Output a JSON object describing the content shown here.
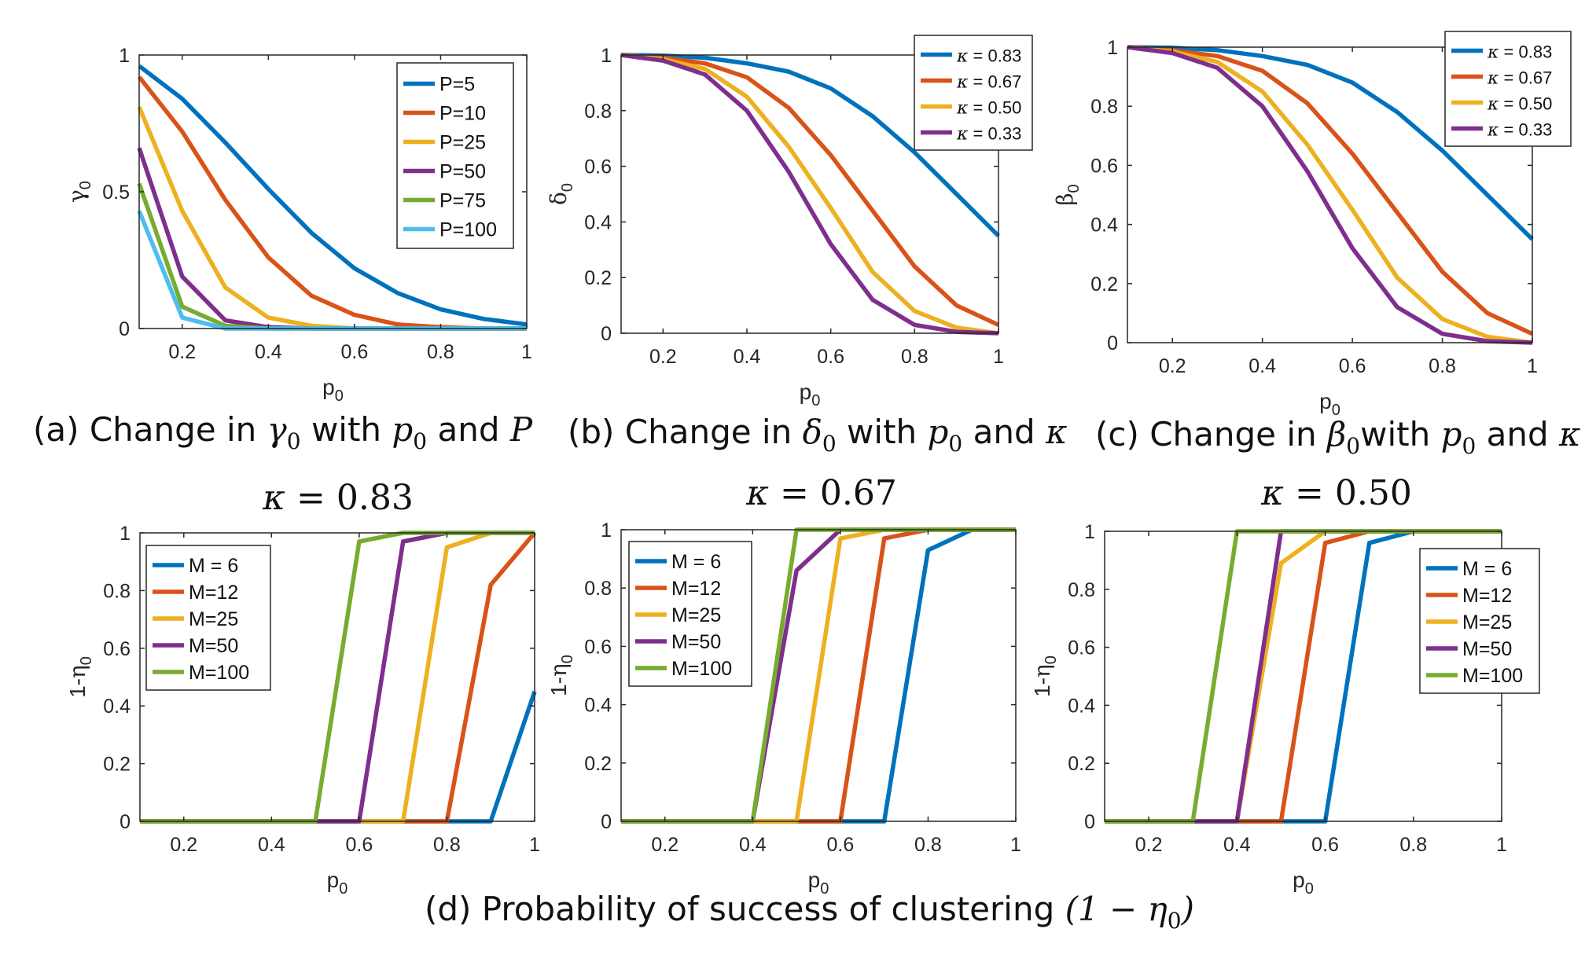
{
  "colors": {
    "blue": "#0072BD",
    "orange": "#D95319",
    "yellow": "#EDB120",
    "purple": "#7E2F8E",
    "green": "#77AC30",
    "cyan": "#4DBEEE"
  },
  "captions": {
    "a": {
      "pre": "(a) Change in ",
      "sym": "γ",
      "sub": "0",
      "mid": " with ",
      "p": "p",
      "psub": "0",
      "and": " and ",
      "last": "P"
    },
    "b": {
      "pre": "(b) Change in ",
      "sym": "δ",
      "sub": "0",
      "mid": " with ",
      "p": "p",
      "psub": "0",
      "and": " and ",
      "last": "κ"
    },
    "c": {
      "pre": "(c) Change in ",
      "sym": "β",
      "sub": "0",
      "mid": "with ",
      "p": "p",
      "psub": "0",
      "and": " and ",
      "last": "κ"
    },
    "d": {
      "pre": "(d) Probability of success of clustering ",
      "expr": "(1 − η",
      "sub": "0",
      "close": ")"
    }
  },
  "chart_data": [
    {
      "id": "a",
      "type": "line",
      "ylabel": "γ0",
      "ylabel_sym": "γ",
      "ylabel_sub": "0",
      "xlabel": "p0",
      "xlabel_sym": "p",
      "xlabel_sub": "0",
      "xlim": [
        0.1,
        1
      ],
      "ylim": [
        0,
        1
      ],
      "xticks": [
        "0.2",
        "0.4",
        "0.6",
        "0.8",
        "1"
      ],
      "yticks": [
        "0",
        "0.5",
        "1"
      ],
      "legend_position": "top-right",
      "x": [
        0.1,
        0.2,
        0.3,
        0.4,
        0.5,
        0.6,
        0.7,
        0.8,
        0.9,
        1.0
      ],
      "series": [
        {
          "name": "P=5",
          "color": "#0072BD",
          "values": [
            0.96,
            0.84,
            0.68,
            0.51,
            0.35,
            0.22,
            0.13,
            0.07,
            0.035,
            0.015
          ]
        },
        {
          "name": "P=10",
          "color": "#D95319",
          "values": [
            0.92,
            0.72,
            0.47,
            0.26,
            0.12,
            0.05,
            0.015,
            0.005,
            0.0,
            0.0
          ]
        },
        {
          "name": "P=25",
          "color": "#EDB120",
          "values": [
            0.81,
            0.43,
            0.15,
            0.04,
            0.01,
            0.0,
            0.0,
            0.0,
            0.0,
            0.0
          ]
        },
        {
          "name": "P=50",
          "color": "#7E2F8E",
          "values": [
            0.66,
            0.19,
            0.03,
            0.005,
            0.0,
            0.0,
            0.0,
            0.0,
            0.0,
            0.0
          ]
        },
        {
          "name": "P=75",
          "color": "#77AC30",
          "values": [
            0.53,
            0.08,
            0.01,
            0.0,
            0.0,
            0.0,
            0.0,
            0.0,
            0.0,
            0.0
          ]
        },
        {
          "name": "P=100",
          "color": "#4DBEEE",
          "values": [
            0.43,
            0.04,
            0.0,
            0.0,
            0.0,
            0.0,
            0.0,
            0.0,
            0.0,
            0.0
          ]
        }
      ]
    },
    {
      "id": "b",
      "type": "line",
      "ylabel": "δ0",
      "ylabel_sym": "δ",
      "ylabel_sub": "0",
      "xlabel": "p0",
      "xlabel_sym": "p",
      "xlabel_sub": "0",
      "xlim": [
        0.1,
        1
      ],
      "ylim": [
        0,
        1
      ],
      "xticks": [
        "0.2",
        "0.4",
        "0.6",
        "0.8",
        "1"
      ],
      "yticks": [
        "0",
        "0.2",
        "0.4",
        "0.6",
        "0.8",
        "1"
      ],
      "legend_position": "top-right",
      "x": [
        0.1,
        0.2,
        0.3,
        0.4,
        0.5,
        0.6,
        0.7,
        0.8,
        0.9,
        1.0
      ],
      "series": [
        {
          "name": "κ = 0.83",
          "sym": "κ",
          "rest": " = 0.83",
          "color": "#0072BD",
          "values": [
            1.0,
            0.998,
            0.99,
            0.97,
            0.94,
            0.88,
            0.78,
            0.65,
            0.5,
            0.35
          ]
        },
        {
          "name": "κ = 0.67",
          "sym": "κ",
          "rest": " = 0.67",
          "color": "#D95319",
          "values": [
            1.0,
            0.99,
            0.97,
            0.92,
            0.81,
            0.64,
            0.44,
            0.24,
            0.1,
            0.03
          ]
        },
        {
          "name": "κ = 0.50",
          "sym": "κ",
          "rest": " = 0.50",
          "color": "#EDB120",
          "values": [
            1.0,
            0.985,
            0.95,
            0.85,
            0.67,
            0.45,
            0.22,
            0.08,
            0.02,
            0.0
          ]
        },
        {
          "name": "κ = 0.33",
          "sym": "κ",
          "rest": " = 0.33",
          "color": "#7E2F8E",
          "values": [
            1.0,
            0.98,
            0.93,
            0.8,
            0.58,
            0.32,
            0.12,
            0.03,
            0.005,
            0.0
          ]
        }
      ]
    },
    {
      "id": "c",
      "type": "line",
      "ylabel": "β0",
      "ylabel_sym": "β",
      "ylabel_sub": "0",
      "xlabel": "p0",
      "xlabel_sym": "p",
      "xlabel_sub": "0",
      "xlim": [
        0.1,
        1
      ],
      "ylim": [
        0,
        1
      ],
      "xticks": [
        "0.2",
        "0.4",
        "0.6",
        "0.8",
        "1"
      ],
      "yticks": [
        "0",
        "0.2",
        "0.4",
        "0.6",
        "0.8",
        "1"
      ],
      "legend_position": "top-right",
      "x": [
        0.1,
        0.2,
        0.3,
        0.4,
        0.5,
        0.6,
        0.7,
        0.8,
        0.9,
        1.0
      ],
      "series": [
        {
          "name": "κ = 0.83",
          "sym": "κ",
          "rest": " = 0.83",
          "color": "#0072BD",
          "values": [
            1.0,
            0.998,
            0.99,
            0.97,
            0.94,
            0.88,
            0.78,
            0.65,
            0.5,
            0.35
          ]
        },
        {
          "name": "κ = 0.67",
          "sym": "κ",
          "rest": " = 0.67",
          "color": "#D95319",
          "values": [
            1.0,
            0.99,
            0.97,
            0.92,
            0.81,
            0.64,
            0.44,
            0.24,
            0.1,
            0.03
          ]
        },
        {
          "name": "κ = 0.50",
          "sym": "κ",
          "rest": " = 0.50",
          "color": "#EDB120",
          "values": [
            1.0,
            0.985,
            0.95,
            0.85,
            0.67,
            0.45,
            0.22,
            0.08,
            0.02,
            0.0
          ]
        },
        {
          "name": "κ = 0.33",
          "sym": "κ",
          "rest": " = 0.33",
          "color": "#7E2F8E",
          "values": [
            1.0,
            0.98,
            0.93,
            0.8,
            0.58,
            0.32,
            0.12,
            0.03,
            0.005,
            0.0
          ]
        }
      ]
    },
    {
      "id": "d1",
      "type": "line",
      "title": "κ = 0.83",
      "title_sym": "κ",
      "title_rest": " = 0.83",
      "ylabel": "1-η0",
      "ylabel_pre": "1-",
      "ylabel_sym": "η",
      "ylabel_sub": "0",
      "xlabel": "p0",
      "xlabel_sym": "p",
      "xlabel_sub": "0",
      "xlim": [
        0.1,
        1
      ],
      "ylim": [
        0,
        1
      ],
      "xticks": [
        "0.2",
        "0.4",
        "0.6",
        "0.8",
        "1"
      ],
      "yticks": [
        "0",
        "0.2",
        "0.4",
        "0.6",
        "0.8",
        "1"
      ],
      "legend_position": "top-left",
      "x": [
        0.1,
        0.2,
        0.3,
        0.4,
        0.5,
        0.6,
        0.7,
        0.8,
        0.9,
        1.0
      ],
      "series": [
        {
          "name": "M = 6",
          "color": "#0072BD",
          "values": [
            0,
            0,
            0,
            0,
            0,
            0,
            0,
            0,
            0,
            0.45
          ]
        },
        {
          "name": "M=12",
          "color": "#D95319",
          "values": [
            0,
            0,
            0,
            0,
            0,
            0,
            0,
            0,
            0.82,
            1.0
          ]
        },
        {
          "name": "M=25",
          "color": "#EDB120",
          "values": [
            0,
            0,
            0,
            0,
            0,
            0,
            0,
            0.95,
            1.0,
            1.0
          ]
        },
        {
          "name": "M=50",
          "color": "#7E2F8E",
          "values": [
            0,
            0,
            0,
            0,
            0,
            0,
            0.97,
            1.0,
            1.0,
            1.0
          ]
        },
        {
          "name": "M=100",
          "color": "#77AC30",
          "values": [
            0,
            0,
            0,
            0,
            0,
            0.97,
            1.0,
            1.0,
            1.0,
            1.0
          ]
        }
      ]
    },
    {
      "id": "d2",
      "type": "line",
      "title": "κ = 0.67",
      "title_sym": "κ",
      "title_rest": " = 0.67",
      "ylabel": "1-η0",
      "ylabel_pre": "1-",
      "ylabel_sym": "η",
      "ylabel_sub": "0",
      "xlabel": "p0",
      "xlabel_sym": "p",
      "xlabel_sub": "0",
      "xlim": [
        0.1,
        1
      ],
      "ylim": [
        0,
        1
      ],
      "xticks": [
        "0.2",
        "0.4",
        "0.6",
        "0.8",
        "1"
      ],
      "yticks": [
        "0",
        "0.2",
        "0.4",
        "0.6",
        "0.8",
        "1"
      ],
      "legend_position": "top-left",
      "x": [
        0.1,
        0.2,
        0.3,
        0.4,
        0.5,
        0.6,
        0.7,
        0.8,
        0.9,
        1.0
      ],
      "series": [
        {
          "name": "M = 6",
          "color": "#0072BD",
          "values": [
            0,
            0,
            0,
            0,
            0,
            0,
            0,
            0.93,
            1.0,
            1.0
          ]
        },
        {
          "name": "M=12",
          "color": "#D95319",
          "values": [
            0,
            0,
            0,
            0,
            0,
            0,
            0.97,
            1.0,
            1.0,
            1.0
          ]
        },
        {
          "name": "M=25",
          "color": "#EDB120",
          "values": [
            0,
            0,
            0,
            0,
            0,
            0.97,
            1.0,
            1.0,
            1.0,
            1.0
          ]
        },
        {
          "name": "M=50",
          "color": "#7E2F8E",
          "values": [
            0,
            0,
            0,
            0,
            0.86,
            1.0,
            1.0,
            1.0,
            1.0,
            1.0
          ]
        },
        {
          "name": "M=100",
          "color": "#77AC30",
          "values": [
            0,
            0,
            0,
            0,
            1.0,
            1.0,
            1.0,
            1.0,
            1.0,
            1.0
          ]
        }
      ]
    },
    {
      "id": "d3",
      "type": "line",
      "title": "κ = 0.50",
      "title_sym": "κ",
      "title_rest": " = 0.50",
      "ylabel": "1-η0",
      "ylabel_pre": "1-",
      "ylabel_sym": "η",
      "ylabel_sub": "0",
      "xlabel": "p0",
      "xlabel_sym": "p",
      "xlabel_sub": "0",
      "xlim": [
        0.1,
        1
      ],
      "ylim": [
        0,
        1
      ],
      "xticks": [
        "0.2",
        "0.4",
        "0.6",
        "0.8",
        "1"
      ],
      "yticks": [
        "0",
        "0.2",
        "0.4",
        "0.6",
        "0.8",
        "1"
      ],
      "legend_position": "right",
      "x": [
        0.1,
        0.2,
        0.3,
        0.4,
        0.5,
        0.6,
        0.7,
        0.8,
        0.9,
        1.0
      ],
      "series": [
        {
          "name": "M = 6",
          "color": "#0072BD",
          "values": [
            0,
            0,
            0,
            0,
            0,
            0,
            0.96,
            1.0,
            1.0,
            1.0
          ]
        },
        {
          "name": "M=12",
          "color": "#D95319",
          "values": [
            0,
            0,
            0,
            0,
            0,
            0.96,
            1.0,
            1.0,
            1.0,
            1.0
          ]
        },
        {
          "name": "M=25",
          "color": "#EDB120",
          "values": [
            0,
            0,
            0,
            0,
            0.89,
            1.0,
            1.0,
            1.0,
            1.0,
            1.0
          ]
        },
        {
          "name": "M=50",
          "color": "#7E2F8E",
          "values": [
            0,
            0,
            0,
            0,
            1.0,
            1.0,
            1.0,
            1.0,
            1.0,
            1.0
          ]
        },
        {
          "name": "M=100",
          "color": "#77AC30",
          "values": [
            0,
            0,
            0,
            1.0,
            1.0,
            1.0,
            1.0,
            1.0,
            1.0,
            1.0
          ]
        }
      ]
    }
  ]
}
